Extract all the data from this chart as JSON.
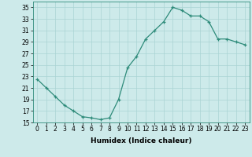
{
  "x": [
    0,
    1,
    2,
    3,
    4,
    5,
    6,
    7,
    8,
    9,
    10,
    11,
    12,
    13,
    14,
    15,
    16,
    17,
    18,
    19,
    20,
    21,
    22,
    23
  ],
  "y": [
    22.5,
    21.0,
    19.5,
    18.0,
    17.0,
    16.0,
    15.8,
    15.5,
    15.8,
    19.0,
    24.5,
    26.5,
    29.5,
    31.0,
    32.5,
    35.0,
    34.5,
    33.5,
    33.5,
    32.5,
    29.5,
    29.5,
    29.0,
    28.5
  ],
  "line_color": "#2e8b7a",
  "marker": "P",
  "marker_size": 2.5,
  "bg_color": "#cdeaea",
  "grid_color": "#aad4d4",
  "xlabel": "Humidex (Indice chaleur)",
  "ylim": [
    15,
    36
  ],
  "xlim": [
    -0.5,
    23.5
  ],
  "yticks": [
    15,
    17,
    19,
    21,
    23,
    25,
    27,
    29,
    31,
    33,
    35
  ],
  "xticks": [
    0,
    1,
    2,
    3,
    4,
    5,
    6,
    7,
    8,
    9,
    10,
    11,
    12,
    13,
    14,
    15,
    16,
    17,
    18,
    19,
    20,
    21,
    22,
    23
  ],
  "tick_fontsize": 5.5,
  "xlabel_fontsize": 6.5
}
